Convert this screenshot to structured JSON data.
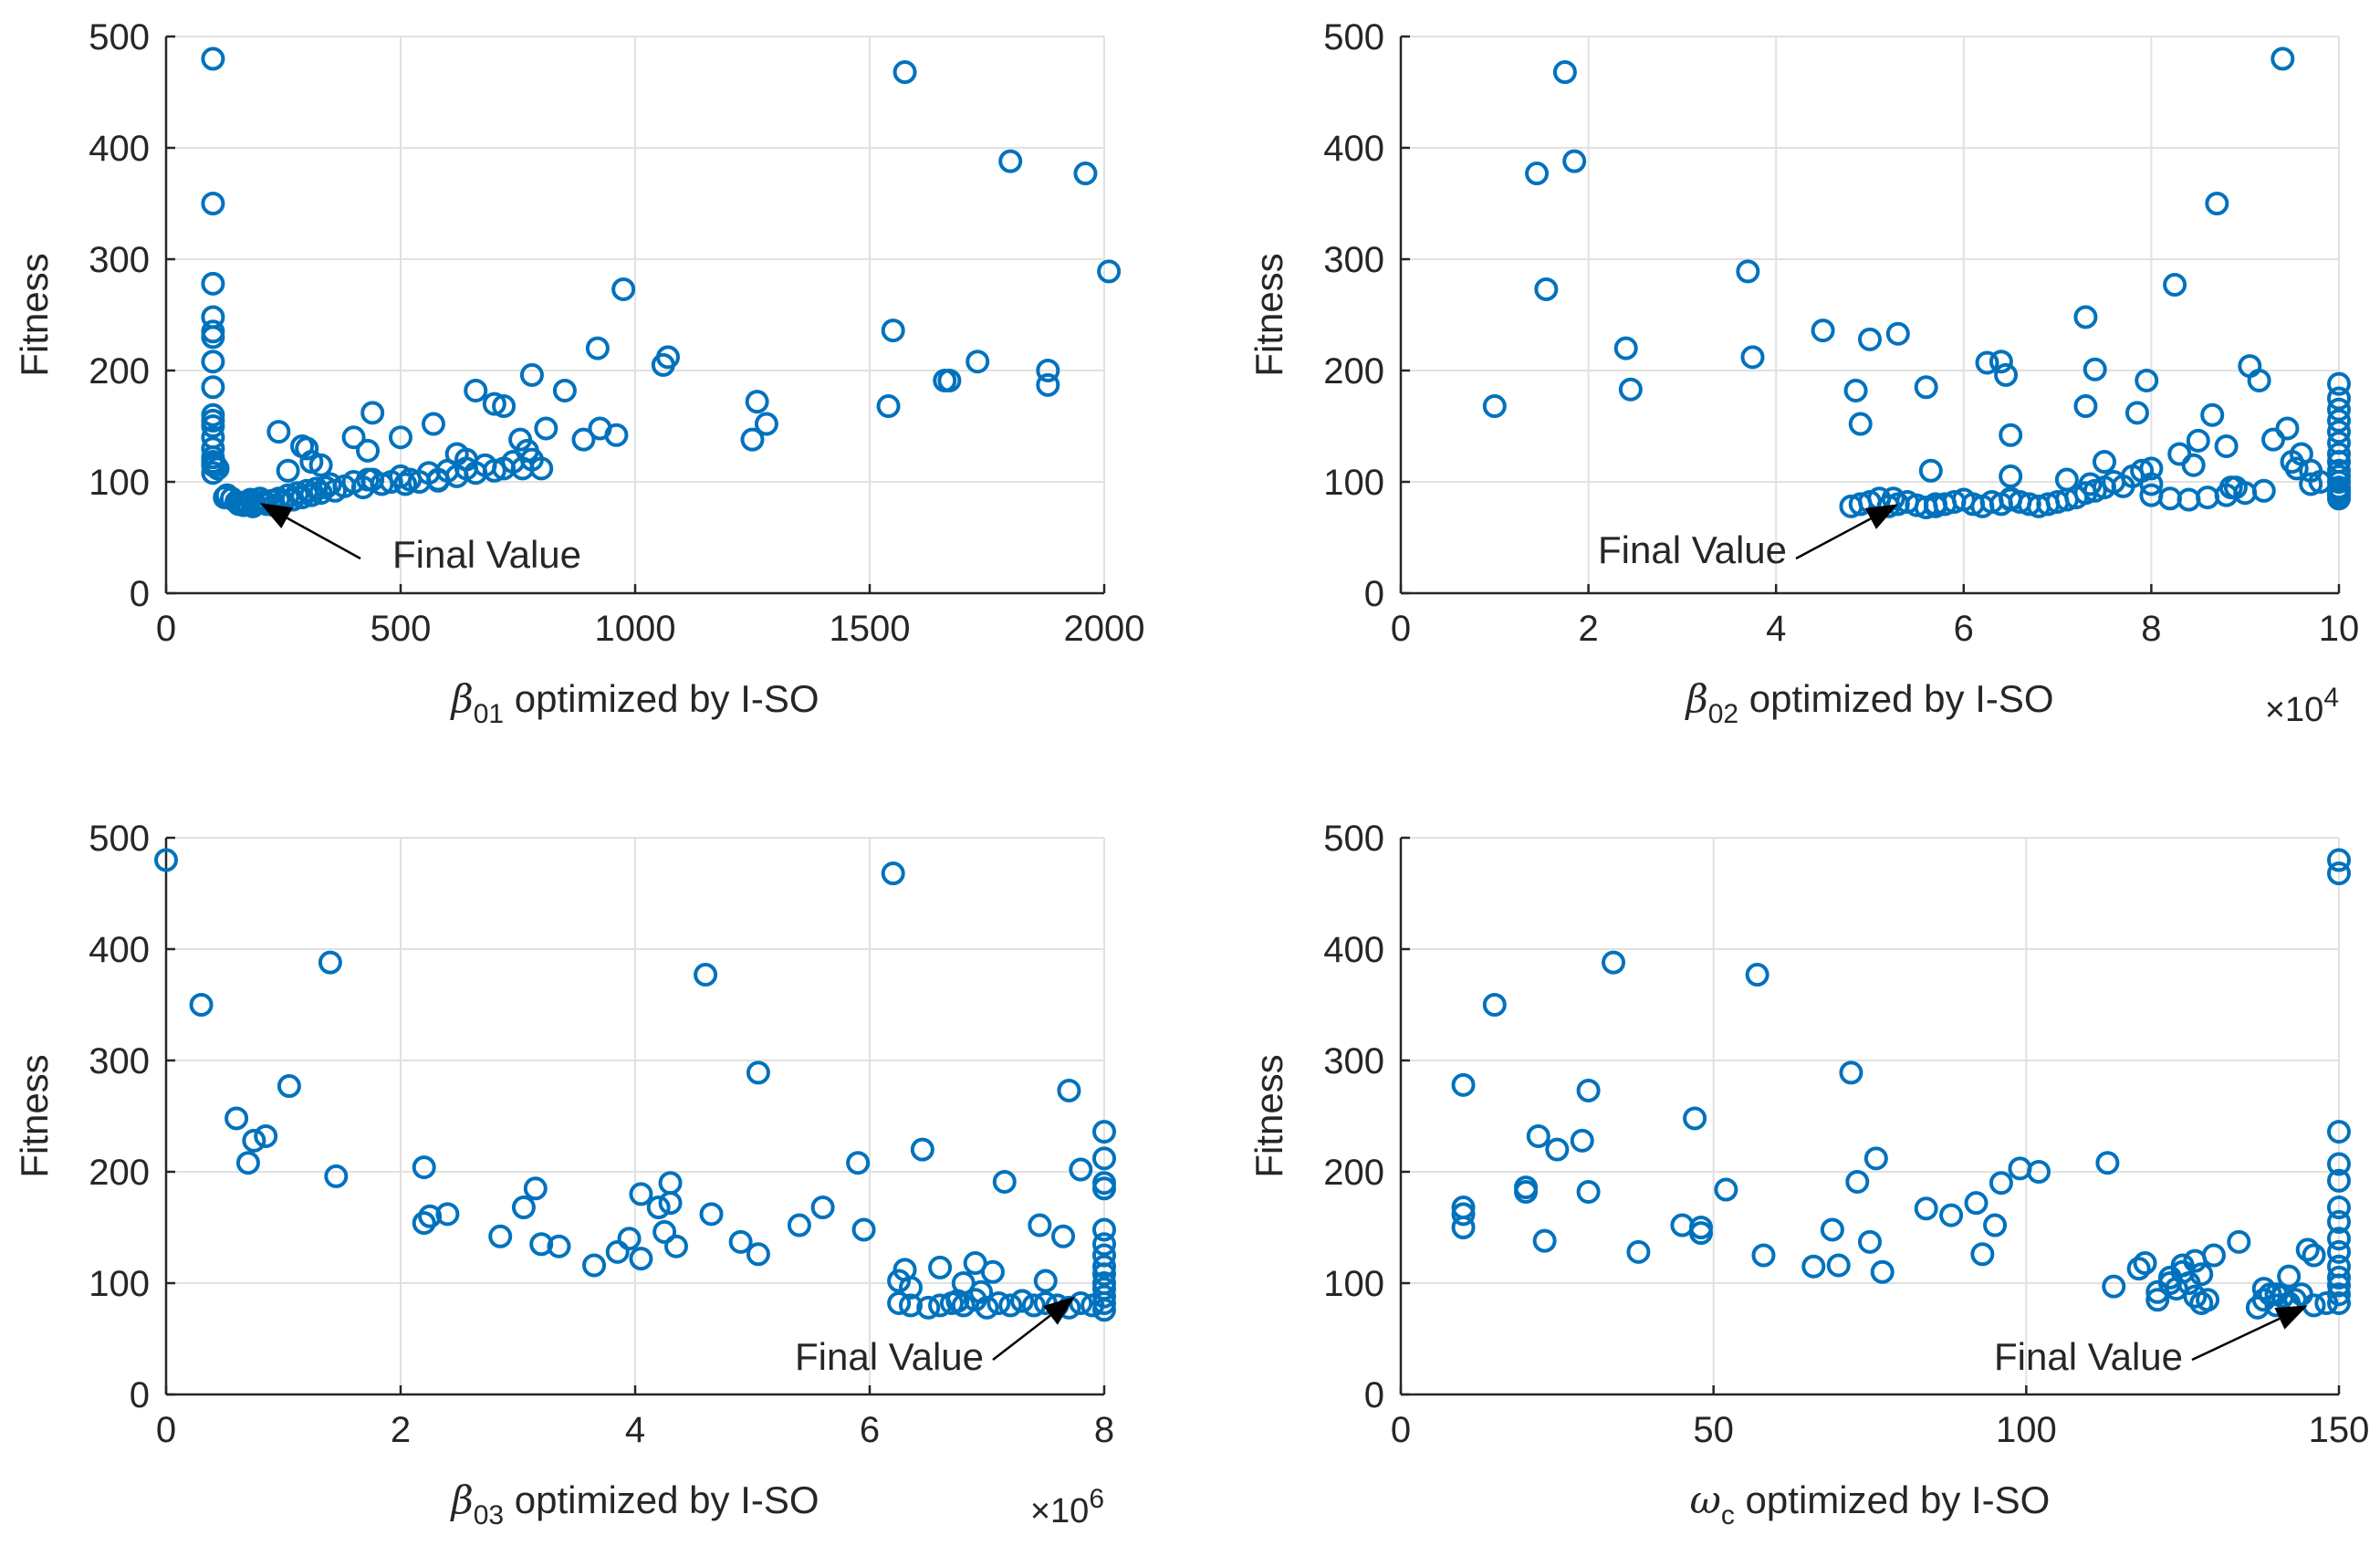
{
  "colors": {
    "marker": "#0072bd",
    "axis": "#262626",
    "grid": "#e1e1e1",
    "annotation": "#000000"
  },
  "chart_data": [
    {
      "type": "scatter",
      "title": "",
      "xlabel": {
        "symbol": "β",
        "subscript": "01",
        "text": " optimized by I-SO"
      },
      "ylabel": "Fitness",
      "xlim": [
        0,
        2000
      ],
      "ylim": [
        0,
        500
      ],
      "xticks": [
        0,
        500,
        1000,
        1500,
        2000
      ],
      "xtick_labels": [
        "0",
        "500",
        "1000",
        "1500",
        "2000"
      ],
      "yticks": [
        0,
        100,
        200,
        300,
        400,
        500
      ],
      "ytick_labels": [
        "0",
        "100",
        "200",
        "300",
        "400",
        "500"
      ],
      "x_exponent": "",
      "grid": true,
      "annotation": {
        "text": "Final Value",
        "point": [
          200,
          81
        ]
      },
      "x": [
        100,
        100,
        100,
        100,
        100,
        100,
        100,
        100,
        100,
        100,
        100,
        100,
        100,
        100,
        105,
        110,
        125,
        130,
        140,
        150,
        155,
        160,
        165,
        170,
        175,
        180,
        185,
        190,
        200,
        205,
        215,
        225,
        230,
        240,
        250,
        260,
        270,
        280,
        290,
        300,
        310,
        320,
        330,
        340,
        350,
        360,
        380,
        400,
        420,
        440,
        460,
        480,
        500,
        520,
        540,
        560,
        580,
        600,
        620,
        640,
        660,
        680,
        700,
        720,
        740,
        760,
        780,
        800,
        240,
        260,
        290,
        300,
        310,
        330,
        400,
        440,
        500,
        570,
        620,
        660,
        700,
        720,
        780,
        810,
        850,
        890,
        920,
        960,
        1060,
        1070,
        1250,
        1260,
        1280,
        1540,
        1550,
        1670,
        1660,
        1730,
        1880,
        1880,
        1960,
        2010,
        975,
        925,
        770,
        755,
        640,
        580,
        510,
        430,
        430,
        100,
        100,
        1575,
        1800,
        100
      ],
      "y": [
        480,
        350,
        278,
        248,
        235,
        230,
        208,
        185,
        160,
        155,
        150,
        140,
        130,
        118,
        115,
        112,
        86,
        88,
        85,
        82,
        80,
        81,
        79,
        82,
        80,
        84,
        78,
        80,
        85,
        82,
        80,
        83,
        79,
        85,
        82,
        88,
        84,
        90,
        86,
        92,
        88,
        94,
        90,
        95,
        98,
        92,
        96,
        100,
        95,
        102,
        98,
        100,
        105,
        102,
        100,
        108,
        102,
        110,
        105,
        112,
        108,
        115,
        110,
        112,
        118,
        112,
        120,
        112,
        145,
        110,
        132,
        130,
        118,
        115,
        140,
        162,
        140,
        152,
        125,
        182,
        170,
        168,
        196,
        148,
        182,
        138,
        220,
        142,
        205,
        212,
        138,
        172,
        152,
        168,
        236,
        191,
        191,
        208,
        200,
        187,
        377,
        289,
        273,
        148,
        128,
        138,
        120,
        101,
        98,
        128,
        102,
        122,
        115,
        468,
        388,
        108
      ]
    },
    {
      "type": "scatter",
      "title": "",
      "xlabel": {
        "symbol": "β",
        "subscript": "02",
        "text": " optimized by I-SO"
      },
      "ylabel": "Fitness",
      "xlim": [
        0,
        10
      ],
      "ylim": [
        0,
        500
      ],
      "xticks": [
        0,
        2,
        4,
        6,
        8,
        10
      ],
      "xtick_labels": [
        "0",
        "2",
        "4",
        "6",
        "8",
        "10"
      ],
      "yticks": [
        0,
        100,
        200,
        300,
        400,
        500
      ],
      "ytick_labels": [
        "0",
        "100",
        "200",
        "300",
        "400",
        "500"
      ],
      "x_exponent": "4",
      "grid": true,
      "annotation": {
        "text": "Final Value",
        "point": [
          5.3,
          80
        ]
      },
      "x": [
        1.0,
        1.45,
        1.55,
        1.75,
        1.85,
        2.4,
        2.45,
        3.7,
        3.75,
        4.5,
        4.85,
        4.9,
        5.0,
        5.3,
        5.6,
        5.65,
        6.25,
        6.4,
        6.45,
        6.5,
        6.5,
        7.3,
        7.3,
        7.4,
        7.85,
        7.95,
        8.25,
        8.5,
        8.65,
        8.7,
        8.8,
        9.05,
        9.15,
        9.3,
        9.4,
        9.45,
        9.5,
        9.6,
        9.7,
        9.8,
        4.8,
        4.9,
        5.0,
        5.1,
        5.2,
        5.3,
        5.4,
        5.5,
        5.6,
        5.7,
        5.8,
        5.9,
        6.0,
        6.1,
        6.2,
        6.3,
        6.4,
        6.5,
        6.6,
        6.7,
        6.8,
        6.9,
        7.0,
        7.1,
        7.2,
        7.3,
        7.4,
        7.5,
        7.6,
        7.7,
        7.8,
        7.9,
        8.0,
        8.2,
        8.4,
        8.6,
        8.8,
        9.0,
        9.2,
        7.1,
        7.5,
        8.0,
        8.3,
        8.9,
        5.25,
        5.7,
        6.5,
        7.35,
        8.0,
        8.45,
        8.85,
        9.55,
        9.7,
        10,
        10,
        10,
        10,
        10,
        10,
        10,
        10,
        10,
        10,
        10,
        10,
        10,
        10,
        10,
        10
      ],
      "y": [
        168,
        377,
        273,
        468,
        388,
        220,
        183,
        289,
        212,
        236,
        182,
        152,
        228,
        233,
        185,
        110,
        207,
        208,
        196,
        142,
        105,
        248,
        168,
        201,
        162,
        191,
        277,
        137,
        160,
        350,
        132,
        204,
        191,
        138,
        480,
        148,
        118,
        125,
        110,
        100,
        78,
        80,
        82,
        85,
        78,
        80,
        82,
        79,
        77,
        78,
        80,
        82,
        84,
        80,
        78,
        82,
        80,
        84,
        82,
        80,
        78,
        80,
        82,
        84,
        86,
        90,
        92,
        95,
        100,
        96,
        105,
        110,
        88,
        85,
        84,
        86,
        88,
        90,
        92,
        102,
        118,
        112,
        125,
        95,
        85,
        80,
        85,
        98,
        98,
        115,
        95,
        112,
        98,
        188,
        175,
        165,
        155,
        145,
        135,
        125,
        118,
        110,
        105,
        100,
        95,
        92,
        90,
        88,
        85
      ]
    },
    {
      "type": "scatter",
      "title": "",
      "xlabel": {
        "symbol": "β",
        "subscript": "03",
        "text": " optimized by I-SO"
      },
      "ylabel": "Fitness",
      "xlim": [
        0,
        8
      ],
      "ylim": [
        0,
        500
      ],
      "xticks": [
        0,
        2,
        4,
        6,
        8
      ],
      "xtick_labels": [
        "0",
        "2",
        "4",
        "6",
        "8"
      ],
      "yticks": [
        0,
        100,
        200,
        300,
        400,
        500
      ],
      "ytick_labels": [
        "0",
        "100",
        "200",
        "300",
        "400",
        "500"
      ],
      "x_exponent": "6",
      "grid": true,
      "annotation": {
        "text": "Final Value",
        "point": [
          7.75,
          88
        ]
      },
      "x": [
        0.0,
        0.3,
        0.6,
        0.7,
        0.75,
        0.85,
        1.05,
        1.4,
        1.45,
        2.2,
        2.2,
        2.25,
        2.4,
        2.85,
        3.05,
        3.15,
        3.2,
        3.35,
        3.65,
        3.85,
        3.95,
        4.05,
        4.05,
        4.2,
        4.25,
        4.3,
        4.3,
        4.35,
        4.6,
        4.65,
        4.9,
        5.05,
        5.05,
        5.4,
        5.6,
        5.9,
        5.95,
        6.2,
        6.25,
        6.3,
        6.35,
        6.45,
        6.6,
        6.75,
        6.8,
        6.9,
        6.95,
        7.05,
        7.15,
        7.3,
        7.45,
        7.5,
        7.65,
        7.7,
        7.8,
        6.25,
        6.35,
        6.5,
        6.6,
        6.7,
        6.8,
        6.9,
        7.0,
        7.1,
        7.2,
        7.3,
        7.4,
        7.5,
        7.6,
        7.7,
        7.8,
        7.9,
        8,
        8,
        8,
        8,
        8,
        8,
        8,
        8,
        8,
        8,
        8,
        8,
        8,
        8
      ],
      "y": [
        480,
        350,
        248,
        208,
        228,
        232,
        277,
        388,
        196,
        204,
        154,
        160,
        162,
        142,
        168,
        185,
        135,
        133,
        116,
        128,
        140,
        180,
        122,
        168,
        146,
        190,
        172,
        133,
        377,
        162,
        137,
        289,
        126,
        152,
        168,
        208,
        148,
        468,
        102,
        112,
        96,
        220,
        114,
        84,
        100,
        118,
        92,
        110,
        191,
        84,
        152,
        102,
        142,
        273,
        202,
        82,
        80,
        78,
        80,
        82,
        80,
        85,
        78,
        82,
        80,
        84,
        80,
        82,
        80,
        78,
        82,
        80,
        236,
        212,
        190,
        185,
        148,
        135,
        125,
        115,
        108,
        100,
        95,
        88,
        82,
        76
      ]
    },
    {
      "type": "scatter",
      "title": "",
      "xlabel": {
        "symbol": "ω",
        "subscript": "c",
        "text": " optimized by I-SO"
      },
      "ylabel": "Fitness",
      "xlim": [
        0,
        150
      ],
      "ylim": [
        0,
        500
      ],
      "xticks": [
        0,
        50,
        100,
        150
      ],
      "xtick_labels": [
        "0",
        "50",
        "100",
        "150"
      ],
      "yticks": [
        0,
        100,
        200,
        300,
        400,
        500
      ],
      "ytick_labels": [
        "0",
        "100",
        "200",
        "300",
        "400",
        "500"
      ],
      "x_exponent": "",
      "grid": true,
      "annotation": {
        "text": "Final Value",
        "point": [
          145,
          80
        ]
      },
      "x": [
        10,
        10,
        10,
        10,
        15,
        20,
        20,
        22,
        23,
        25,
        29,
        30,
        30,
        34,
        38,
        45,
        47,
        48,
        48,
        52,
        57,
        58,
        66,
        69,
        70,
        72,
        73,
        75,
        76,
        77,
        84,
        88,
        92,
        93,
        95,
        96,
        99,
        102,
        113,
        114,
        118,
        119,
        121,
        123,
        125,
        127,
        128,
        129,
        130,
        134,
        138,
        140,
        142,
        142,
        143,
        145,
        146,
        121,
        123,
        124,
        125,
        126,
        127,
        128,
        137,
        138,
        139,
        140,
        141,
        142,
        144,
        146,
        148,
        150,
        150,
        150,
        150,
        150,
        150,
        150,
        150,
        150,
        150,
        150,
        150,
        150,
        150
      ],
      "y": [
        278,
        168,
        162,
        150,
        350,
        186,
        182,
        232,
        138,
        220,
        228,
        182,
        273,
        388,
        128,
        152,
        248,
        150,
        145,
        184,
        377,
        125,
        115,
        148,
        116,
        289,
        191,
        137,
        212,
        110,
        167,
        161,
        172,
        126,
        152,
        190,
        203,
        200,
        208,
        97,
        113,
        118,
        85,
        100,
        116,
        120,
        82,
        85,
        125,
        137,
        95,
        90,
        80,
        106,
        85,
        130,
        125,
        92,
        105,
        95,
        110,
        100,
        88,
        108,
        78,
        85,
        90,
        80,
        88,
        82,
        90,
        80,
        82,
        480,
        468,
        236,
        207,
        192,
        168,
        155,
        140,
        128,
        115,
        105,
        98,
        90,
        82
      ]
    }
  ]
}
